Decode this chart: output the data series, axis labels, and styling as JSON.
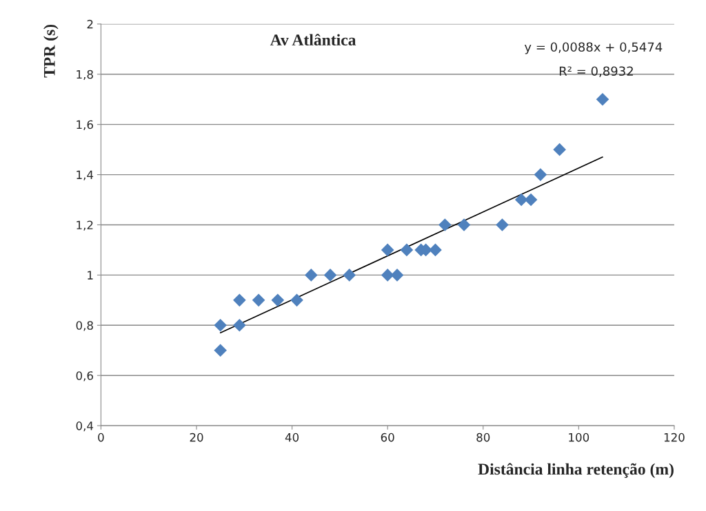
{
  "chart_data": {
    "type": "scatter",
    "title": "Av Atlântica",
    "xlabel": "Distância linha retenção (m)",
    "ylabel": "TPR (s)",
    "annotations": [
      "y = 0,0088x + 0,5474",
      "R² = 0,8932"
    ],
    "xlim": [
      0,
      120
    ],
    "xticks": [
      0,
      20,
      40,
      60,
      80,
      100,
      120
    ],
    "ylim": [
      0.4,
      2
    ],
    "yticks": [
      {
        "value": 0.4,
        "label": "0,4"
      },
      {
        "value": 0.6,
        "label": "0,6"
      },
      {
        "value": 0.8,
        "label": "0,8"
      },
      {
        "value": 1,
        "label": "1"
      },
      {
        "value": 1.2,
        "label": "1,2"
      },
      {
        "value": 1.4,
        "label": "1,4"
      },
      {
        "value": 1.6,
        "label": "1,6"
      },
      {
        "value": 1.8,
        "label": "1,8"
      },
      {
        "value": 2,
        "label": "2"
      }
    ],
    "grid": "y",
    "legend": false,
    "marker": "diamond",
    "series": [
      {
        "color": "#4f81bd",
        "x": [
          25,
          25,
          29,
          29,
          33,
          37,
          41,
          44,
          48,
          52,
          60,
          60,
          62,
          64,
          67,
          68,
          70,
          72,
          76,
          84,
          88,
          90,
          92,
          96,
          105
        ],
        "values": [
          0.8,
          0.7,
          0.9,
          0.8,
          0.9,
          0.9,
          0.9,
          1.0,
          1.0,
          1.0,
          1.1,
          1.0,
          1.0,
          1.1,
          1.1,
          1.1,
          1.1,
          1.2,
          1.2,
          1.2,
          1.3,
          1.3,
          1.4,
          1.5,
          1.7
        ]
      },
      {
        "type": "line",
        "color": "#000000",
        "marker": "none",
        "x": [
          25,
          105
        ],
        "values": [
          0.77,
          1.47
        ]
      }
    ]
  }
}
